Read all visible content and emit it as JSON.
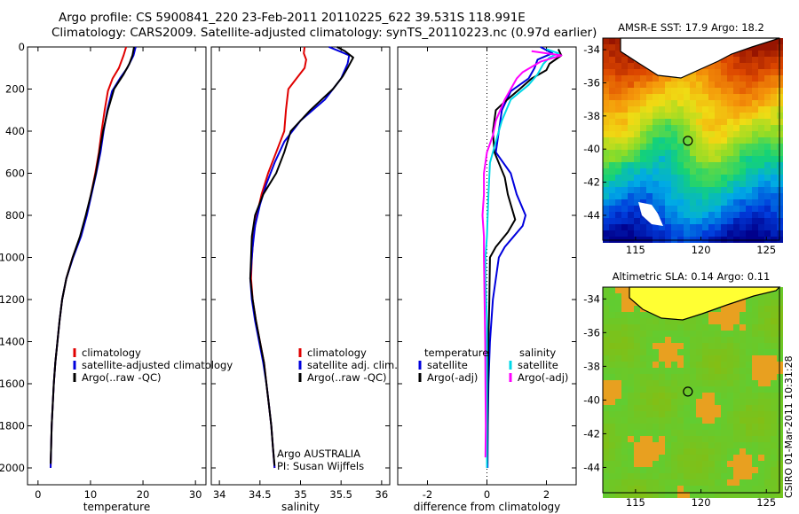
{
  "header": {
    "line1": "Argo profile: CS 5900841_220 23-Feb-2011 20110225_622 39.531S 118.991E",
    "line2": "Climatology: CARS2009. Satellite-adjusted climatology: synTS_20110223.nc (0.97d earlier)"
  },
  "footer": {
    "timestamp": "CSIRO 01-Mar-2011 10:31:28"
  },
  "colors": {
    "climatology": "#e00000",
    "satellite": "#0000dd",
    "argo": "#000000",
    "salinity_satellite": "#00d8e8",
    "salinity_argo": "#ff00ff"
  },
  "chart_data": [
    {
      "type": "line",
      "id": "temperature",
      "xlabel": "temperature",
      "ylabel": "",
      "xlim": [
        -2,
        32
      ],
      "ylim": [
        0,
        2080
      ],
      "xticks": [
        0,
        10,
        20,
        30
      ],
      "yticks": [
        0,
        200,
        400,
        600,
        800,
        1000,
        1200,
        1400,
        1600,
        1800,
        2000
      ],
      "legend": [
        "climatology",
        "satellite-adjusted climatology",
        "Argo(..raw -QC)"
      ],
      "series": [
        {
          "name": "climatology",
          "color": "#e00000",
          "points": [
            [
              16.8,
              0
            ],
            [
              16.3,
              40
            ],
            [
              15.4,
              100
            ],
            [
              14.2,
              150
            ],
            [
              13.3,
              210
            ],
            [
              12.7,
              300
            ],
            [
              12.1,
              400
            ],
            [
              11.6,
              500
            ],
            [
              10.9,
              600
            ],
            [
              10.1,
              700
            ],
            [
              9.2,
              800
            ],
            [
              8.1,
              900
            ],
            [
              6.6,
              1000
            ],
            [
              5.4,
              1100
            ],
            [
              4.6,
              1200
            ],
            [
              4.1,
              1300
            ],
            [
              3.7,
              1400
            ],
            [
              3.3,
              1500
            ],
            [
              3.0,
              1600
            ],
            [
              2.8,
              1700
            ],
            [
              2.6,
              1800
            ],
            [
              2.5,
              1900
            ],
            [
              2.4,
              2000
            ]
          ]
        },
        {
          "name": "satellite-adjusted climatology",
          "color": "#0000dd",
          "points": [
            [
              18.6,
              0
            ],
            [
              18.2,
              40
            ],
            [
              17.0,
              100
            ],
            [
              15.6,
              150
            ],
            [
              14.1,
              210
            ],
            [
              13.2,
              300
            ],
            [
              12.5,
              400
            ],
            [
              11.9,
              500
            ],
            [
              11.1,
              600
            ],
            [
              10.2,
              700
            ],
            [
              9.3,
              800
            ],
            [
              8.2,
              900
            ],
            [
              6.7,
              1000
            ],
            [
              5.4,
              1100
            ],
            [
              4.6,
              1200
            ],
            [
              4.1,
              1300
            ],
            [
              3.7,
              1400
            ],
            [
              3.3,
              1500
            ],
            [
              3.0,
              1600
            ],
            [
              2.8,
              1700
            ],
            [
              2.6,
              1800
            ],
            [
              2.5,
              1900
            ],
            [
              2.4,
              2000
            ]
          ]
        },
        {
          "name": "Argo(..raw -QC)",
          "color": "#000000",
          "points": [
            [
              18.3,
              0
            ],
            [
              18.0,
              40
            ],
            [
              17.4,
              80
            ],
            [
              16.3,
              130
            ],
            [
              14.5,
              200
            ],
            [
              13.3,
              300
            ],
            [
              12.4,
              400
            ],
            [
              11.7,
              500
            ],
            [
              11.0,
              600
            ],
            [
              10.1,
              700
            ],
            [
              9.1,
              800
            ],
            [
              8.0,
              900
            ],
            [
              6.6,
              1000
            ],
            [
              5.4,
              1100
            ],
            [
              4.6,
              1200
            ],
            [
              4.1,
              1300
            ],
            [
              3.7,
              1400
            ],
            [
              3.3,
              1500
            ],
            [
              3.0,
              1600
            ],
            [
              2.8,
              1700
            ],
            [
              2.6,
              1800
            ],
            [
              2.5,
              1900
            ],
            [
              2.4,
              1980
            ]
          ]
        }
      ]
    },
    {
      "type": "line",
      "id": "salinity",
      "xlabel": "salinity",
      "xlim": [
        33.9,
        36.1
      ],
      "ylim": [
        0,
        2080
      ],
      "xticks": [
        34,
        34.5,
        35,
        35.5,
        36
      ],
      "legend": [
        "climatology",
        "satellite adj. clim.",
        "Argo(..raw -QC)"
      ],
      "annotation": [
        "Argo AUSTRALIA",
        "PI: Susan Wijffels"
      ],
      "series": [
        {
          "name": "climatology",
          "color": "#e00000",
          "points": [
            [
              35.05,
              0
            ],
            [
              35.04,
              30
            ],
            [
              35.07,
              60
            ],
            [
              35.05,
              100
            ],
            [
              34.95,
              150
            ],
            [
              34.85,
              200
            ],
            [
              34.82,
              300
            ],
            [
              34.8,
              400
            ],
            [
              34.7,
              500
            ],
            [
              34.6,
              600
            ],
            [
              34.52,
              700
            ],
            [
              34.46,
              800
            ],
            [
              34.42,
              900
            ],
            [
              34.4,
              1000
            ],
            [
              34.39,
              1100
            ],
            [
              34.41,
              1200
            ],
            [
              34.45,
              1300
            ],
            [
              34.5,
              1400
            ],
            [
              34.55,
              1500
            ],
            [
              34.58,
              1600
            ],
            [
              34.61,
              1700
            ],
            [
              34.64,
              1800
            ],
            [
              34.66,
              1900
            ],
            [
              34.68,
              2000
            ]
          ]
        },
        {
          "name": "satellite adj. clim.",
          "color": "#0000dd",
          "points": [
            [
              35.35,
              0
            ],
            [
              35.48,
              20
            ],
            [
              35.6,
              40
            ],
            [
              35.58,
              80
            ],
            [
              35.5,
              150
            ],
            [
              35.3,
              250
            ],
            [
              35.0,
              350
            ],
            [
              34.8,
              450
            ],
            [
              34.68,
              550
            ],
            [
              34.58,
              650
            ],
            [
              34.5,
              750
            ],
            [
              34.44,
              850
            ],
            [
              34.41,
              950
            ],
            [
              34.39,
              1050
            ],
            [
              34.38,
              1100
            ],
            [
              34.4,
              1200
            ],
            [
              34.44,
              1300
            ],
            [
              34.49,
              1400
            ],
            [
              34.54,
              1500
            ],
            [
              34.58,
              1600
            ],
            [
              34.61,
              1700
            ],
            [
              34.64,
              1800
            ],
            [
              34.66,
              1900
            ],
            [
              34.68,
              2000
            ]
          ]
        },
        {
          "name": "Argo(..raw -QC)",
          "color": "#000000",
          "points": [
            [
              35.45,
              0
            ],
            [
              35.55,
              20
            ],
            [
              35.65,
              50
            ],
            [
              35.58,
              100
            ],
            [
              35.52,
              140
            ],
            [
              35.4,
              200
            ],
            [
              35.12,
              300
            ],
            [
              34.88,
              400
            ],
            [
              34.8,
              500
            ],
            [
              34.7,
              600
            ],
            [
              34.54,
              700
            ],
            [
              34.44,
              800
            ],
            [
              34.4,
              900
            ],
            [
              34.39,
              1000
            ],
            [
              34.38,
              1100
            ],
            [
              34.41,
              1200
            ],
            [
              34.45,
              1300
            ],
            [
              34.5,
              1400
            ],
            [
              34.55,
              1500
            ],
            [
              34.58,
              1600
            ],
            [
              34.61,
              1700
            ],
            [
              34.64,
              1800
            ],
            [
              34.66,
              1900
            ],
            [
              34.68,
              1990
            ]
          ]
        }
      ]
    },
    {
      "type": "line",
      "id": "difference",
      "xlabel": "difference from climatology",
      "xlim": [
        -3,
        3
      ],
      "ylim": [
        0,
        2080
      ],
      "xticks": [
        -2,
        0,
        2
      ],
      "legend_left": {
        "title": "temperature",
        "items": [
          "satellite",
          "Argo(-adj)"
        ]
      },
      "legend_right": {
        "title": "salinity",
        "items": [
          "satellite",
          "Argo(-adj)"
        ]
      },
      "series": [
        {
          "name": "temperature satellite",
          "color": "#0000dd",
          "points": [
            [
              1.8,
              0
            ],
            [
              2.2,
              30
            ],
            [
              1.7,
              60
            ],
            [
              1.6,
              100
            ],
            [
              1.4,
              150
            ],
            [
              0.8,
              210
            ],
            [
              0.5,
              300
            ],
            [
              0.4,
              400
            ],
            [
              0.3,
              500
            ],
            [
              0.8,
              600
            ],
            [
              1.0,
              700
            ],
            [
              1.3,
              800
            ],
            [
              1.2,
              850
            ],
            [
              0.9,
              900
            ],
            [
              0.6,
              950
            ],
            [
              0.4,
              1000
            ],
            [
              0.2,
              1200
            ],
            [
              0.1,
              1400
            ],
            [
              0.05,
              1600
            ],
            [
              0.03,
              1800
            ],
            [
              0.02,
              2000
            ]
          ]
        },
        {
          "name": "temperature Argo(-adj)",
          "color": "#000000",
          "points": [
            [
              2.4,
              10
            ],
            [
              2.5,
              40
            ],
            [
              2.1,
              80
            ],
            [
              2.0,
              110
            ],
            [
              1.5,
              150
            ],
            [
              1.1,
              200
            ],
            [
              0.6,
              260
            ],
            [
              0.3,
              300
            ],
            [
              0.2,
              400
            ],
            [
              0.25,
              500
            ],
            [
              0.6,
              620
            ],
            [
              0.7,
              700
            ],
            [
              0.95,
              820
            ],
            [
              0.7,
              880
            ],
            [
              0.3,
              950
            ],
            [
              0.1,
              1000
            ],
            [
              0.08,
              1200
            ],
            [
              0.05,
              1400
            ],
            [
              0.03,
              1600
            ],
            [
              0.02,
              1800
            ],
            [
              0.01,
              1980
            ]
          ]
        },
        {
          "name": "salinity satellite",
          "color": "#00d8e8",
          "points": [
            [
              2.0,
              10
            ],
            [
              2.4,
              30
            ],
            [
              2.1,
              50
            ],
            [
              1.9,
              80
            ],
            [
              1.7,
              130
            ],
            [
              1.4,
              180
            ],
            [
              0.8,
              250
            ],
            [
              0.5,
              350
            ],
            [
              0.3,
              450
            ],
            [
              0.1,
              550
            ],
            [
              0.05,
              700
            ],
            [
              0.0,
              900
            ],
            [
              -0.05,
              1000
            ],
            [
              -0.05,
              1100
            ],
            [
              0.0,
              1300
            ],
            [
              0.0,
              1500
            ],
            [
              0.0,
              1700
            ],
            [
              0.0,
              1900
            ],
            [
              0.0,
              2000
            ]
          ]
        },
        {
          "name": "salinity Argo(-adj)",
          "color": "#ff00ff",
          "points": [
            [
              1.5,
              20
            ],
            [
              2.5,
              40
            ],
            [
              1.8,
              70
            ],
            [
              1.2,
              120
            ],
            [
              1.0,
              150
            ],
            [
              0.8,
              200
            ],
            [
              0.6,
              250
            ],
            [
              0.3,
              350
            ],
            [
              0.2,
              420
            ],
            [
              0.0,
              500
            ],
            [
              -0.1,
              600
            ],
            [
              -0.1,
              700
            ],
            [
              -0.15,
              800
            ],
            [
              -0.1,
              900
            ],
            [
              -0.1,
              1000
            ],
            [
              -0.08,
              1200
            ],
            [
              -0.06,
              1400
            ],
            [
              -0.05,
              1600
            ],
            [
              -0.04,
              1800
            ],
            [
              -0.05,
              1950
            ]
          ]
        }
      ]
    },
    {
      "type": "heatmap",
      "id": "sst_map",
      "title": "AMSR-E SST: 17.9 Argo: 18.2",
      "xlim": [
        112.5,
        126
      ],
      "ylim": [
        -45.5,
        -33.3
      ],
      "xticks": [
        115,
        120,
        125
      ],
      "yticks": [
        -34,
        -36,
        -38,
        -40,
        -42,
        -44
      ],
      "marker": {
        "lon": 119,
        "lat": -39.5
      }
    },
    {
      "type": "heatmap",
      "id": "sla_map",
      "title": "Altimetric SLA: 0.14 Argo: 0.11",
      "xlim": [
        112.5,
        126
      ],
      "ylim": [
        -45.5,
        -33.3
      ],
      "xticks": [
        115,
        120,
        125
      ],
      "yticks": [
        -34,
        -36,
        -38,
        -40,
        -42,
        -44
      ],
      "marker": {
        "lon": 119,
        "lat": -39.5
      }
    }
  ]
}
